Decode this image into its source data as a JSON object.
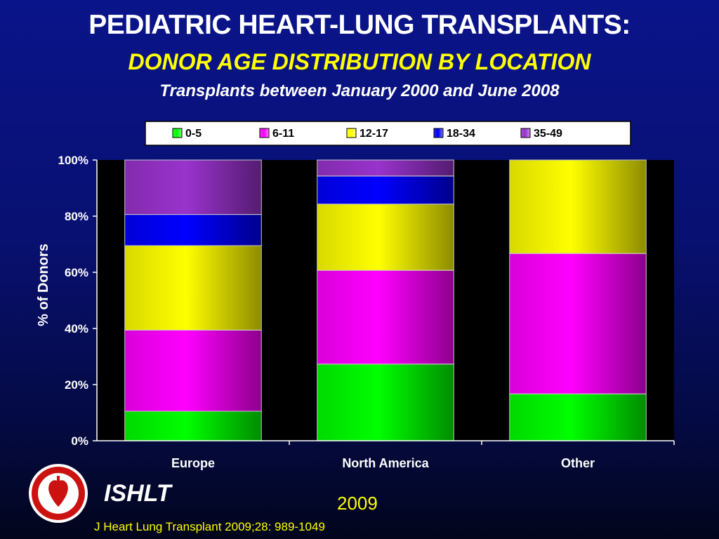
{
  "header": {
    "title": "PEDIATRIC HEART-LUNG TRANSPLANTS:",
    "subtitle": "DONOR AGE DISTRIBUTION BY LOCATION",
    "subsubtitle": "Transplants between January 2000 and June 2008"
  },
  "footer": {
    "org": "ISHLT",
    "year": "2009",
    "citation": "J Heart Lung Transplant 2009;28: 989-1049"
  },
  "colors": {
    "background": "#0a148a",
    "plot_area": "#000000",
    "title": "#ffffff",
    "accent": "#ffff00"
  },
  "chart_data": {
    "type": "bar",
    "stacked": true,
    "categories": [
      "Europe",
      "North America",
      "Other"
    ],
    "series": [
      {
        "name": "0-5",
        "color": "#00ff00",
        "values": [
          10.5,
          27.3,
          16.7
        ]
      },
      {
        "name": "6-11",
        "color": "#ff00ff",
        "values": [
          28.9,
          33.4,
          50.0
        ]
      },
      {
        "name": "12-17",
        "color": "#ffff00",
        "values": [
          30.1,
          23.6,
          33.3
        ]
      },
      {
        "name": "18-34",
        "color": "#0000ff",
        "values": [
          11.1,
          10.0,
          0
        ]
      },
      {
        "name": "35-49",
        "color": "#9933cc",
        "values": [
          19.4,
          5.7,
          0
        ]
      }
    ],
    "ylabel": "% of Donors",
    "xlabel": "",
    "ylim": [
      0,
      100
    ],
    "yticks": [
      "0%",
      "20%",
      "40%",
      "60%",
      "80%",
      "100%"
    ],
    "legend_position": "top",
    "grid": false
  }
}
